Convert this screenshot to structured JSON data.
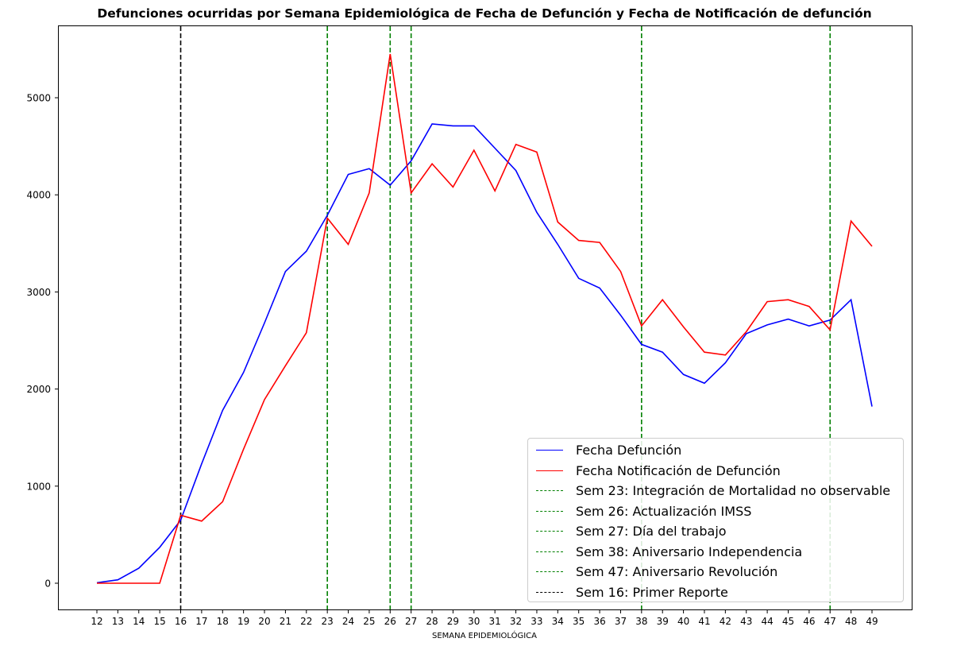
{
  "chart_data": {
    "type": "line",
    "title": "Defunciones ocurridas por Semana Epidemiológica de Fecha de Defunción y Fecha de Notificación de defunción",
    "xlabel": "SEMANA EPIDEMIOLÓGICA",
    "ylabel": "",
    "ylim": [
      -270,
      5750
    ],
    "yticks": [
      0,
      1000,
      2000,
      3000,
      4000,
      5000
    ],
    "grid": false,
    "legend_position": "lower right",
    "x": [
      12,
      13,
      14,
      15,
      16,
      17,
      18,
      19,
      20,
      21,
      22,
      23,
      24,
      25,
      26,
      27,
      28,
      29,
      30,
      31,
      32,
      33,
      34,
      35,
      36,
      37,
      38,
      39,
      40,
      41,
      42,
      43,
      44,
      45,
      46,
      47,
      48,
      49
    ],
    "series": [
      {
        "name": "Fecha Defunción",
        "color": "#0000ff",
        "values": [
          5,
          35,
          155,
          370,
          650,
          1230,
          1780,
          2170,
          2680,
          3210,
          3420,
          3790,
          4210,
          4270,
          4100,
          4350,
          4730,
          4710,
          4710,
          4480,
          4250,
          3820,
          3490,
          3140,
          3040,
          2760,
          2460,
          2380,
          2150,
          2060,
          2270,
          2570,
          2660,
          2720,
          2650,
          2710,
          2920,
          1820
        ]
      },
      {
        "name": "Fecha Notificación de Defunción",
        "color": "#ff0000",
        "values": [
          0,
          0,
          0,
          0,
          700,
          640,
          840,
          1380,
          1890,
          2240,
          2580,
          3760,
          3490,
          4020,
          5450,
          4020,
          4320,
          4080,
          4460,
          4040,
          4520,
          4440,
          3720,
          3530,
          3510,
          3210,
          2650,
          2920,
          2640,
          2380,
          2350,
          2590,
          2900,
          2920,
          2850,
          2610,
          3730,
          3470
        ]
      }
    ],
    "vlines": [
      {
        "x": 23,
        "color": "#008000",
        "style": "dashed",
        "label": "Sem 23: Integración de Mortalidad no observable"
      },
      {
        "x": 26,
        "color": "#008000",
        "style": "dashed",
        "label": "Sem 26: Actualización IMSS"
      },
      {
        "x": 27,
        "color": "#008000",
        "style": "dashed",
        "label": "Sem 27: Día del trabajo"
      },
      {
        "x": 38,
        "color": "#008000",
        "style": "dashed",
        "label": "Sem 38: Aniversario Independencia"
      },
      {
        "x": 47,
        "color": "#008000",
        "style": "dashed",
        "label": "Sem 47: Aniversario Revolución"
      },
      {
        "x": 16,
        "color": "#000000",
        "style": "dashed",
        "label": "Sem 16: Primer Reporte"
      }
    ]
  },
  "legend": {
    "items": [
      {
        "label": "Fecha Defunción",
        "color": "#0000ff",
        "style": "solid"
      },
      {
        "label": "Fecha Notificación de Defunción",
        "color": "#ff0000",
        "style": "solid"
      },
      {
        "label": "Sem 23: Integración de Mortalidad no observable",
        "color": "#008000",
        "style": "dashed"
      },
      {
        "label": "Sem 26: Actualización IMSS",
        "color": "#008000",
        "style": "dashed"
      },
      {
        "label": "Sem 27: Día del trabajo",
        "color": "#008000",
        "style": "dashed"
      },
      {
        "label": "Sem 38: Aniversario Independencia",
        "color": "#008000",
        "style": "dashed"
      },
      {
        "label": "Sem 47: Aniversario Revolución",
        "color": "#008000",
        "style": "dashed"
      },
      {
        "label": "Sem 16: Primer Reporte",
        "color": "#000000",
        "style": "dashed"
      }
    ]
  }
}
